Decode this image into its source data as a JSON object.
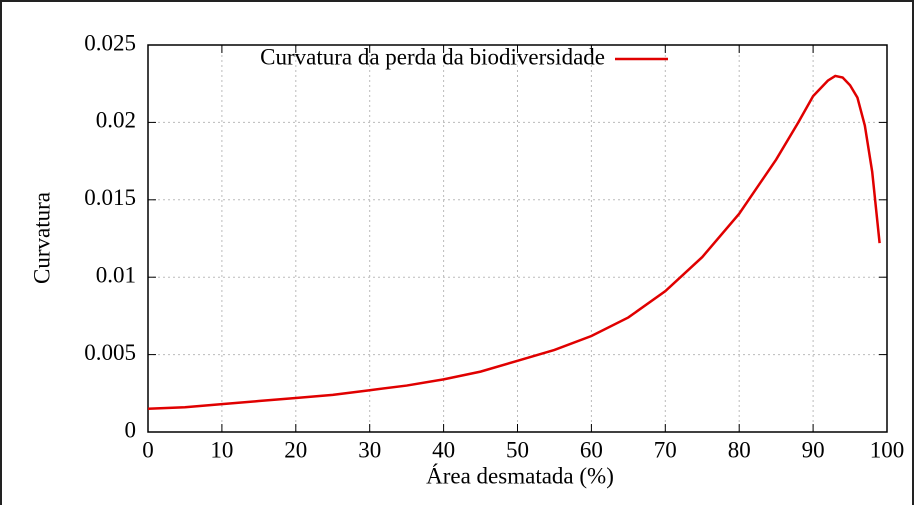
{
  "chart_data": {
    "type": "line",
    "xlabel": "Área desmatada (%)",
    "ylabel": "Curvatura",
    "x": [
      0,
      5,
      10,
      15,
      20,
      25,
      30,
      35,
      40,
      45,
      50,
      55,
      60,
      65,
      70,
      75,
      80,
      85,
      88,
      90,
      92,
      93,
      94,
      95,
      96,
      97,
      98,
      99
    ],
    "series": [
      {
        "name": "Curvatura da perda da biodiversidade",
        "color": "#e00000",
        "values": [
          0.0015,
          0.0016,
          0.0018,
          0.002,
          0.0022,
          0.0024,
          0.0027,
          0.003,
          0.0034,
          0.0039,
          0.0046,
          0.0053,
          0.0062,
          0.0074,
          0.0091,
          0.0113,
          0.0141,
          0.0176,
          0.02,
          0.0217,
          0.0227,
          0.023,
          0.0229,
          0.0224,
          0.0216,
          0.0198,
          0.0168,
          0.0122
        ]
      }
    ],
    "xlim": [
      0,
      100
    ],
    "xticks": [
      0,
      10,
      20,
      30,
      40,
      50,
      60,
      70,
      80,
      90,
      100
    ],
    "ylim": [
      0,
      0.025
    ],
    "yticks": [
      0,
      0.005,
      0.01,
      0.015,
      0.02,
      0.025
    ],
    "grid": true,
    "legend": "top-left"
  }
}
